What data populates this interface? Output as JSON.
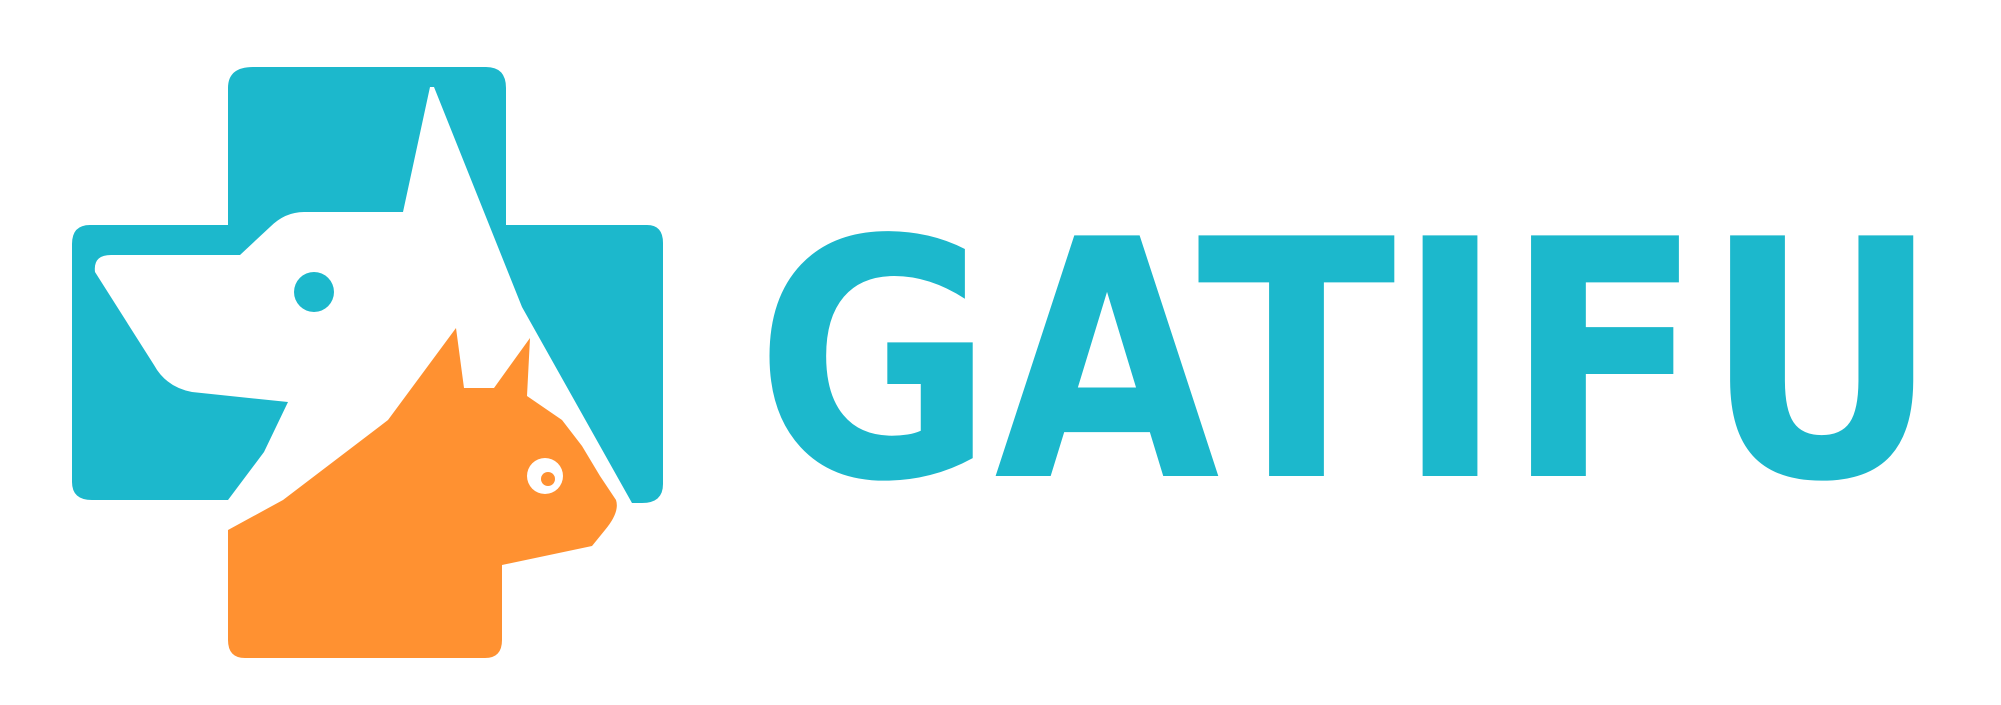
{
  "brand": {
    "name": "GATIFU",
    "colors": {
      "teal": "#1cb8cc",
      "orange": "#ff9131",
      "white": "#ffffff"
    }
  },
  "icons": {
    "mark": "vet-cross-dog-cat-icon",
    "dog": "dog-head-icon",
    "cat": "cat-head-icon"
  }
}
